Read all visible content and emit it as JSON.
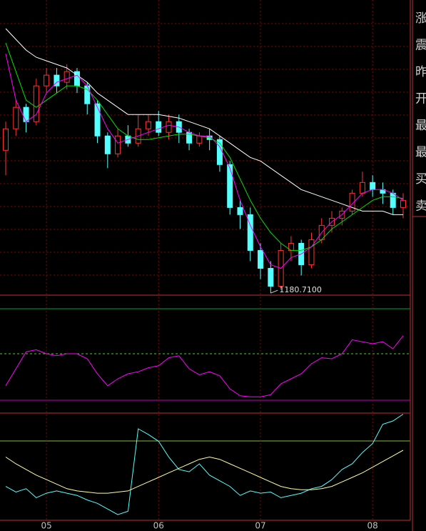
{
  "chart_data": {
    "type": "candlestick",
    "categories": [
      null,
      null,
      null,
      null,
      "05",
      null,
      null,
      null,
      null,
      null,
      null,
      null,
      null,
      null,
      null,
      "06",
      null,
      null,
      null,
      null,
      null,
      null,
      null,
      null,
      null,
      "07",
      null,
      null,
      null,
      null,
      null,
      null,
      null,
      null,
      null,
      null,
      "08",
      null,
      null,
      null
    ],
    "ylim": [
      1175,
      2000
    ],
    "open": [
      1580,
      1640,
      1700,
      1660,
      1760,
      1790,
      1770,
      1800,
      1760,
      1710,
      1620,
      1570,
      1620,
      1600,
      1640,
      1660,
      1630,
      1660,
      1630,
      1600,
      1620,
      1610,
      1540,
      1420,
      1400,
      1300,
      1250,
      1200,
      1300,
      1320,
      1260,
      1330,
      1370,
      1390,
      1410,
      1460,
      1490,
      1470,
      1460,
      1420
    ],
    "high": [
      1660,
      1720,
      1710,
      1780,
      1810,
      1810,
      1820,
      1810,
      1770,
      1720,
      1630,
      1640,
      1650,
      1680,
      1680,
      1690,
      1680,
      1680,
      1640,
      1630,
      1640,
      1620,
      1550,
      1440,
      1420,
      1320,
      1270,
      1320,
      1340,
      1330,
      1350,
      1390,
      1410,
      1420,
      1470,
      1520,
      1510,
      1490,
      1470,
      1460
    ],
    "low": [
      1510,
      1620,
      1630,
      1650,
      1740,
      1740,
      1750,
      1740,
      1680,
      1600,
      1530,
      1560,
      1590,
      1590,
      1620,
      1620,
      1610,
      1600,
      1580,
      1590,
      1580,
      1520,
      1400,
      1360,
      1270,
      1220,
      1180.71,
      1190,
      1270,
      1230,
      1250,
      1320,
      1350,
      1370,
      1400,
      1450,
      1450,
      1430,
      1400,
      1390
    ],
    "close": [
      1640,
      1700,
      1660,
      1760,
      1790,
      1760,
      1800,
      1760,
      1710,
      1620,
      1570,
      1620,
      1600,
      1640,
      1660,
      1630,
      1660,
      1630,
      1600,
      1620,
      1610,
      1540,
      1420,
      1400,
      1300,
      1250,
      1200,
      1300,
      1320,
      1260,
      1330,
      1370,
      1390,
      1410,
      1460,
      1490,
      1470,
      1460,
      1420,
      1440
    ],
    "up_color": "#ff3232",
    "down_color": "#54ffff",
    "annotation": "1180.7100",
    "series": [
      {
        "color": "#ffffff",
        "values": [
          1920,
          1890,
          1860,
          1840,
          1830,
          1820,
          1810,
          1790,
          1770,
          1740,
          1720,
          1700,
          1680,
          1680,
          1680,
          1680,
          1675,
          1670,
          1660,
          1650,
          1640,
          1620,
          1600,
          1580,
          1560,
          1550,
          1530,
          1510,
          1490,
          1470,
          1460,
          1450,
          1440,
          1430,
          1420,
          1410,
          1410,
          1410,
          1400,
          1400
        ]
      },
      {
        "color": "#00e000",
        "values": [
          1880,
          1800,
          1720,
          1700,
          1720,
          1740,
          1760,
          1760,
          1750,
          1720,
          1680,
          1640,
          1620,
          1610,
          1610,
          1615,
          1620,
          1625,
          1625,
          1620,
          1615,
          1600,
          1560,
          1500,
          1440,
          1390,
          1350,
          1320,
          1300,
          1300,
          1310,
          1330,
          1360,
          1380,
          1400,
          1420,
          1440,
          1450,
          1450,
          1445
        ]
      },
      {
        "color": "#ff00ff",
        "values": [
          1850,
          1720,
          1660,
          1680,
          1740,
          1770,
          1780,
          1790,
          1760,
          1700,
          1640,
          1600,
          1610,
          1620,
          1630,
          1640,
          1650,
          1645,
          1630,
          1620,
          1620,
          1590,
          1530,
          1440,
          1370,
          1310,
          1260,
          1250,
          1280,
          1290,
          1310,
          1350,
          1380,
          1400,
          1430,
          1460,
          1470,
          1470,
          1460,
          1440
        ]
      }
    ],
    "panels": [
      {
        "ylim": [
          0,
          100
        ],
        "series": [
          {
            "color": "#ff00ff",
            "values": [
              18,
              35,
              52,
              54,
              50,
              48,
              50,
              50,
              45,
              30,
              18,
              25,
              30,
              32,
              36,
              38,
              46,
              48,
              35,
              29,
              32,
              28,
              15,
              8,
              7,
              7,
              9,
              20,
              25,
              30,
              40,
              46,
              45,
              50,
              64,
              62,
              60,
              62,
              55,
              68
            ]
          }
        ]
      },
      {
        "ylim": [
          0,
          100
        ],
        "series": [
          {
            "color": "#54ffff",
            "values": [
              30,
              25,
              28,
              20,
              24,
              26,
              24,
              22,
              18,
              15,
              10,
              5,
              8,
              81,
              76,
              70,
              56,
              45,
              43,
              50,
              40,
              35,
              30,
              22,
              26,
              24,
              25,
              20,
              22,
              24,
              28,
              30,
              36,
              45,
              50,
              60,
              68,
              85,
              88,
              94
            ]
          },
          {
            "color": "#ffffa0",
            "values": [
              56,
              50,
              45,
              40,
              36,
              32,
              28,
              26,
              25,
              24,
              24,
              25,
              26,
              30,
              34,
              38,
              42,
              46,
              50,
              54,
              56,
              54,
              50,
              46,
              42,
              38,
              34,
              30,
              28,
              27,
              27,
              28,
              30,
              34,
              38,
              42,
              47,
              52,
              57,
              62
            ]
          }
        ]
      }
    ],
    "side_labels": [
      "涨",
      "震",
      "昨",
      "开",
      "最",
      "最",
      "买",
      "卖"
    ]
  }
}
